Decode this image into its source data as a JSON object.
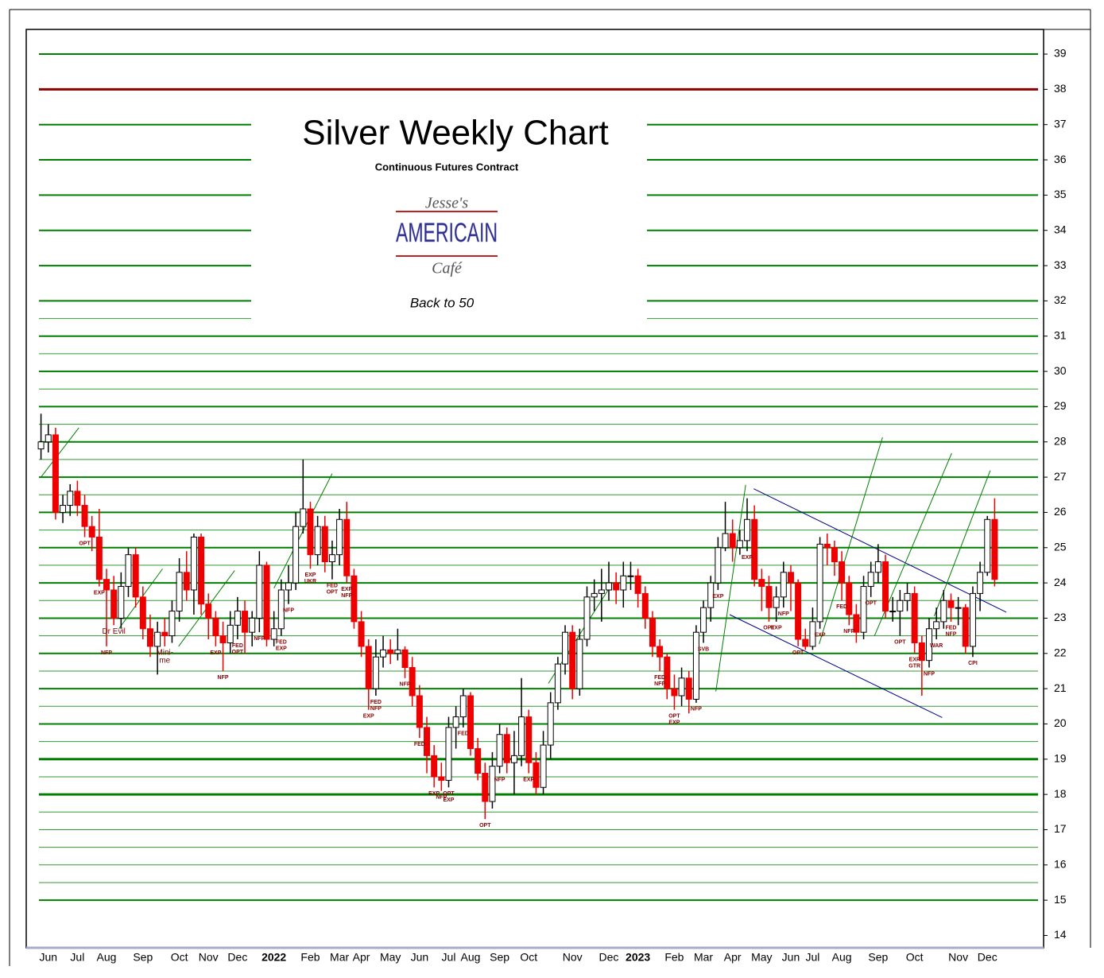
{
  "chart_data": {
    "type": "candlestick",
    "title": "Silver Weekly Chart",
    "subtitle": "Continuous Futures Contract",
    "logo": {
      "line1": "Jesse's",
      "line2": "AMERICAIN",
      "line3": "Café"
    },
    "caption": "Back to 50",
    "up_color": "#ffffff",
    "down_color": "#ee0000",
    "ylim": [
      13.65,
      39.7
    ],
    "yticks": [
      14,
      15,
      16,
      17,
      18,
      19,
      20,
      21,
      22,
      23,
      24,
      25,
      26,
      27,
      28,
      29,
      30,
      31,
      32,
      33,
      34,
      35,
      36,
      37,
      38,
      39
    ],
    "major_lines": [
      39,
      37,
      36,
      35,
      34,
      33,
      32,
      31,
      30,
      29,
      28,
      27,
      26,
      25,
      24,
      23,
      22,
      21,
      20,
      15
    ],
    "heavy_lines": [
      19,
      18
    ],
    "minor_lines": [
      31.5,
      30.5,
      29.5,
      28.5,
      27.5,
      26.5,
      25.5,
      24.5,
      23.5,
      22.5,
      21.5,
      20.5,
      19.5,
      18.5,
      17.5,
      17,
      16.5,
      16,
      15.5
    ],
    "line_color": "#008000",
    "resistance": 38,
    "resistance_color": "#8b0000",
    "categories": [
      null,
      "Jun",
      null,
      null,
      null,
      "Jul",
      null,
      null,
      null,
      "Aug",
      null,
      null,
      null,
      null,
      "Sep",
      null,
      null,
      null,
      null,
      "Oct",
      null,
      null,
      null,
      "Nov",
      null,
      null,
      null,
      "Dec",
      null,
      null,
      null,
      null,
      "2022",
      null,
      null,
      null,
      null,
      "Feb",
      null,
      null,
      null,
      "Mar",
      null,
      null,
      "Apr",
      null,
      null,
      null,
      "May",
      null,
      null,
      null,
      "Jun",
      null,
      null,
      null,
      "Jul",
      null,
      null,
      "Aug",
      null,
      null,
      null,
      "Sep",
      null,
      null,
      null,
      "Oct",
      null,
      null,
      null,
      null,
      null,
      "Nov",
      null,
      null,
      null,
      null,
      "Dec",
      null,
      null,
      null,
      "2023",
      null,
      null,
      null,
      null,
      "Feb",
      null,
      null,
      null,
      "Mar",
      null,
      null,
      null,
      "Apr",
      null,
      null,
      null,
      "May",
      null,
      null,
      null,
      "Jun",
      null,
      null,
      "Jul",
      null,
      null,
      null,
      "Aug",
      null,
      null,
      null,
      null,
      "Sep",
      null,
      null,
      null,
      null,
      "Oct",
      null,
      null,
      null,
      null,
      null,
      "Nov",
      null,
      null,
      null,
      "Dec",
      null
    ],
    "ohlc": [
      [
        27.8,
        28.8,
        27.5,
        28.0
      ],
      [
        28.0,
        28.5,
        27.7,
        28.2
      ],
      [
        28.2,
        28.4,
        25.8,
        26.0
      ],
      [
        26.0,
        26.5,
        25.7,
        26.2
      ],
      [
        26.2,
        26.8,
        25.9,
        26.6
      ],
      [
        26.6,
        26.9,
        25.9,
        26.2
      ],
      [
        26.2,
        26.5,
        25.3,
        25.6
      ],
      [
        25.6,
        25.9,
        24.9,
        25.3
      ],
      [
        25.3,
        26.1,
        23.9,
        24.1
      ],
      [
        24.1,
        24.4,
        22.2,
        23.8
      ],
      [
        23.8,
        24.2,
        22.8,
        23.0
      ],
      [
        23.0,
        24.3,
        22.7,
        23.9
      ],
      [
        23.9,
        25.0,
        23.6,
        24.8
      ],
      [
        24.8,
        25.0,
        23.3,
        23.6
      ],
      [
        23.6,
        23.9,
        22.4,
        22.7
      ],
      [
        22.7,
        23.1,
        21.9,
        22.2
      ],
      [
        22.2,
        22.9,
        21.4,
        22.6
      ],
      [
        22.6,
        23.0,
        22.2,
        22.5
      ],
      [
        22.5,
        23.5,
        22.3,
        23.2
      ],
      [
        23.2,
        24.7,
        22.9,
        24.3
      ],
      [
        24.3,
        24.9,
        23.5,
        23.8
      ],
      [
        23.8,
        25.4,
        23.1,
        25.3
      ],
      [
        25.3,
        25.4,
        23.1,
        23.4
      ],
      [
        23.4,
        23.7,
        22.4,
        23.0
      ],
      [
        23.0,
        23.2,
        22.2,
        22.5
      ],
      [
        22.5,
        22.9,
        21.5,
        22.3
      ],
      [
        22.3,
        23.2,
        22.0,
        22.8
      ],
      [
        22.8,
        23.6,
        22.4,
        23.2
      ],
      [
        23.2,
        23.5,
        22.0,
        22.6
      ],
      [
        22.6,
        23.2,
        22.2,
        23.0
      ],
      [
        23.0,
        24.9,
        22.6,
        24.5
      ],
      [
        24.5,
        24.6,
        22.2,
        22.4
      ],
      [
        22.4,
        23.2,
        22.2,
        22.7
      ],
      [
        22.7,
        24.1,
        22.5,
        23.8
      ],
      [
        23.8,
        24.5,
        23.4,
        24.0
      ],
      [
        24.0,
        26.0,
        23.8,
        25.6
      ],
      [
        25.6,
        27.5,
        25.4,
        26.1
      ],
      [
        26.1,
        26.3,
        24.4,
        24.8
      ],
      [
        24.8,
        25.9,
        24.5,
        25.6
      ],
      [
        25.6,
        25.9,
        24.3,
        24.6
      ],
      [
        24.6,
        25.2,
        24.1,
        24.8
      ],
      [
        24.8,
        26.1,
        24.5,
        25.8
      ],
      [
        25.8,
        26.3,
        24.0,
        24.2
      ],
      [
        24.2,
        24.4,
        22.7,
        22.9
      ],
      [
        22.9,
        23.2,
        21.9,
        22.2
      ],
      [
        22.2,
        22.4,
        20.4,
        21.0
      ],
      [
        21.0,
        22.4,
        20.8,
        21.9
      ],
      [
        21.9,
        22.5,
        21.6,
        22.1
      ],
      [
        22.1,
        22.4,
        21.7,
        22.0
      ],
      [
        22.0,
        22.7,
        21.8,
        22.1
      ],
      [
        22.1,
        22.2,
        21.3,
        21.6
      ],
      [
        21.6,
        21.9,
        20.5,
        20.8
      ],
      [
        20.8,
        21.1,
        19.6,
        19.9
      ],
      [
        19.9,
        20.2,
        18.6,
        19.1
      ],
      [
        19.1,
        19.4,
        18.2,
        18.5
      ],
      [
        18.5,
        18.9,
        18.1,
        18.4
      ],
      [
        18.4,
        20.2,
        18.2,
        19.9
      ],
      [
        19.9,
        20.5,
        19.3,
        20.2
      ],
      [
        20.2,
        21.0,
        19.9,
        20.8
      ],
      [
        20.8,
        20.9,
        19.1,
        19.3
      ],
      [
        19.3,
        19.6,
        18.4,
        18.6
      ],
      [
        18.6,
        18.9,
        17.3,
        17.8
      ],
      [
        17.8,
        19.2,
        17.6,
        18.8
      ],
      [
        18.8,
        20.0,
        18.6,
        19.7
      ],
      [
        19.7,
        19.9,
        18.6,
        18.9
      ],
      [
        18.9,
        19.8,
        18.0,
        19.1
      ],
      [
        19.1,
        21.3,
        18.8,
        20.2
      ],
      [
        20.2,
        20.4,
        18.6,
        18.9
      ],
      [
        18.9,
        19.2,
        18.0,
        18.2
      ],
      [
        18.2,
        19.8,
        18.0,
        19.4
      ],
      [
        19.4,
        20.9,
        19.0,
        20.6
      ],
      [
        20.6,
        21.9,
        20.4,
        21.7
      ],
      [
        21.7,
        22.8,
        21.4,
        22.6
      ],
      [
        22.6,
        22.8,
        20.7,
        21.0
      ],
      [
        21.0,
        22.7,
        20.8,
        22.4
      ],
      [
        22.4,
        23.9,
        22.2,
        23.6
      ],
      [
        23.6,
        24.1,
        23.2,
        23.7
      ],
      [
        23.7,
        24.4,
        22.9,
        23.8
      ],
      [
        23.8,
        24.6,
        23.5,
        24.0
      ],
      [
        24.0,
        24.3,
        23.4,
        23.8
      ],
      [
        23.8,
        24.6,
        23.3,
        24.2
      ],
      [
        24.2,
        24.6,
        23.8,
        24.2
      ],
      [
        24.2,
        24.4,
        23.3,
        23.7
      ],
      [
        23.7,
        23.9,
        22.7,
        23.0
      ],
      [
        23.0,
        23.2,
        21.9,
        22.2
      ],
      [
        22.2,
        22.4,
        21.5,
        21.9
      ],
      [
        21.9,
        22.0,
        20.7,
        21.0
      ],
      [
        21.0,
        21.4,
        20.4,
        20.8
      ],
      [
        20.8,
        21.6,
        20.5,
        21.3
      ],
      [
        21.3,
        21.5,
        20.3,
        20.7
      ],
      [
        20.7,
        22.8,
        20.6,
        22.6
      ],
      [
        22.6,
        23.5,
        22.3,
        23.3
      ],
      [
        23.3,
        24.2,
        22.9,
        24.0
      ],
      [
        24.0,
        25.3,
        23.8,
        25.0
      ],
      [
        25.0,
        26.3,
        24.9,
        25.4
      ],
      [
        25.4,
        25.8,
        24.6,
        25.0
      ],
      [
        25.0,
        25.5,
        24.8,
        25.2
      ],
      [
        25.2,
        26.4,
        24.9,
        25.8
      ],
      [
        25.8,
        26.2,
        23.9,
        24.1
      ],
      [
        24.1,
        24.4,
        23.2,
        23.9
      ],
      [
        23.9,
        24.2,
        22.9,
        23.3
      ],
      [
        23.3,
        23.9,
        22.9,
        23.6
      ],
      [
        23.6,
        24.6,
        23.3,
        24.3
      ],
      [
        24.3,
        24.5,
        23.2,
        24.0
      ],
      [
        24.0,
        24.1,
        22.2,
        22.4
      ],
      [
        22.4,
        22.7,
        22.1,
        22.2
      ],
      [
        22.2,
        23.3,
        22.1,
        22.9
      ],
      [
        22.9,
        25.3,
        22.7,
        25.1
      ],
      [
        25.1,
        25.4,
        24.5,
        25.0
      ],
      [
        25.0,
        25.2,
        24.2,
        24.6
      ],
      [
        24.6,
        24.9,
        23.5,
        24.0
      ],
      [
        24.0,
        24.2,
        22.8,
        23.1
      ],
      [
        23.1,
        23.4,
        22.3,
        22.6
      ],
      [
        22.6,
        24.2,
        22.4,
        23.9
      ],
      [
        23.9,
        24.6,
        23.6,
        24.3
      ],
      [
        24.3,
        25.1,
        24.0,
        24.6
      ],
      [
        24.6,
        24.8,
        23.0,
        23.2
      ],
      [
        23.2,
        23.6,
        22.9,
        23.2
      ],
      [
        23.2,
        23.8,
        22.5,
        23.5
      ],
      [
        23.5,
        24.0,
        23.2,
        23.7
      ],
      [
        23.7,
        23.9,
        22.0,
        22.3
      ],
      [
        22.3,
        22.5,
        20.8,
        21.8
      ],
      [
        21.8,
        23.0,
        21.6,
        22.7
      ],
      [
        22.7,
        23.3,
        22.4,
        22.9
      ],
      [
        22.9,
        23.8,
        22.7,
        23.5
      ],
      [
        23.5,
        23.7,
        22.9,
        23.3
      ],
      [
        23.3,
        23.6,
        22.8,
        23.3
      ],
      [
        23.3,
        23.4,
        22.0,
        22.2
      ],
      [
        22.2,
        23.9,
        21.9,
        23.7
      ],
      [
        23.7,
        24.6,
        23.2,
        24.3
      ],
      [
        24.3,
        25.9,
        24.2,
        25.8
      ],
      [
        25.8,
        26.4,
        23.9,
        24.1
      ]
    ],
    "annotations": [
      {
        "candle": 6,
        "text": [
          "OPT"
        ]
      },
      {
        "candle": 8,
        "text": [
          "EXP"
        ]
      },
      {
        "candle": 9,
        "text": [
          "NFP"
        ]
      },
      {
        "candle": 10,
        "text": [
          "Dr Evil"
        ]
      },
      {
        "candle": 17,
        "text": [
          "Mini-",
          "me"
        ]
      },
      {
        "candle": 24,
        "text": [
          "EXP"
        ]
      },
      {
        "candle": 25,
        "text": [
          "NFP"
        ]
      },
      {
        "candle": 27,
        "text": [
          "FED",
          "OPT"
        ]
      },
      {
        "candle": 30,
        "text": [
          "NFP"
        ]
      },
      {
        "candle": 33,
        "text": [
          "FED",
          "EXP"
        ]
      },
      {
        "candle": 34,
        "text": [
          "NFP"
        ]
      },
      {
        "candle": 37,
        "text": [
          "EXP",
          "UKR"
        ]
      },
      {
        "candle": 40,
        "text": [
          "FED",
          "OPT"
        ]
      },
      {
        "candle": 42,
        "text": [
          "EXP",
          "NFP"
        ]
      },
      {
        "candle": 45,
        "text": [
          "EXP"
        ]
      },
      {
        "candle": 46,
        "text": [
          "FED",
          "NFP"
        ]
      },
      {
        "candle": 50,
        "text": [
          "NFP"
        ]
      },
      {
        "candle": 52,
        "text": [
          "FED"
        ]
      },
      {
        "candle": 54,
        "text": [
          "EXP"
        ]
      },
      {
        "candle": 55,
        "text": [
          "NFP"
        ]
      },
      {
        "candle": 56,
        "text": [
          "OPT",
          "EXP"
        ]
      },
      {
        "candle": 58,
        "text": [
          "FED"
        ]
      },
      {
        "candle": 61,
        "text": [
          "OPT"
        ]
      },
      {
        "candle": 63,
        "text": [
          "NFP"
        ]
      },
      {
        "candle": 67,
        "text": [
          "EXP"
        ]
      },
      {
        "candle": 85,
        "text": [
          "FED",
          "NFP"
        ]
      },
      {
        "candle": 87,
        "text": [
          "OPT",
          "EXP"
        ]
      },
      {
        "candle": 90,
        "text": [
          "NFP"
        ]
      },
      {
        "candle": 91,
        "text": [
          "SVB"
        ]
      },
      {
        "candle": 93,
        "text": [
          "EXP"
        ]
      },
      {
        "candle": 97,
        "text": [
          "EXP"
        ]
      },
      {
        "candle": 100,
        "text": [
          "OPT"
        ]
      },
      {
        "candle": 101,
        "text": [
          "EXP"
        ]
      },
      {
        "candle": 102,
        "text": [
          "NFP"
        ]
      },
      {
        "candle": 104,
        "text": [
          "OPT"
        ]
      },
      {
        "candle": 107,
        "text": [
          "EXP"
        ]
      },
      {
        "candle": 110,
        "text": [
          "FED"
        ]
      },
      {
        "candle": 111,
        "text": [
          "NFP"
        ]
      },
      {
        "candle": 114,
        "text": [
          "OPT"
        ]
      },
      {
        "candle": 118,
        "text": [
          "OPT"
        ]
      },
      {
        "candle": 120,
        "text": [
          "EXP",
          "GTR"
        ]
      },
      {
        "candle": 122,
        "text": [
          "NFP"
        ]
      },
      {
        "candle": 123,
        "text": [
          "WAR"
        ]
      },
      {
        "candle": 125,
        "text": [
          "FED",
          "NFP"
        ]
      },
      {
        "candle": 128,
        "text": [
          "CPI"
        ]
      }
    ],
    "trendlines": [
      {
        "color": "#00008b",
        "points": [
          [
            97.9,
            26.67
          ],
          [
            132.6,
            23.17
          ]
        ]
      },
      {
        "color": "#00008b",
        "points": [
          [
            94.6,
            23.1
          ],
          [
            123.8,
            20.18
          ]
        ]
      },
      {
        "color": "#008000",
        "points": [
          [
            0,
            27.0
          ],
          [
            5.2,
            28.4
          ]
        ]
      },
      {
        "color": "#008000",
        "points": [
          [
            10.7,
            22.7
          ],
          [
            16.7,
            24.4
          ]
        ]
      },
      {
        "color": "#008000",
        "points": [
          [
            18.9,
            22.2
          ],
          [
            26.6,
            24.35
          ]
        ]
      },
      {
        "color": "#008000",
        "points": [
          [
            32,
            23.85
          ],
          [
            40,
            27.1
          ]
        ]
      },
      {
        "color": "#008000",
        "points": [
          [
            69.7,
            21.15
          ],
          [
            78.4,
            23.96
          ]
        ]
      },
      {
        "color": "#008000",
        "points": [
          [
            92.7,
            20.92
          ],
          [
            96.8,
            26.78
          ]
        ]
      },
      {
        "color": "#008000",
        "points": [
          [
            106.9,
            22.27
          ],
          [
            115.6,
            28.13
          ]
        ]
      },
      {
        "color": "#008000",
        "points": [
          [
            114.5,
            22.5
          ],
          [
            125.1,
            27.68
          ]
        ]
      },
      {
        "color": "#008000",
        "points": [
          [
            122.7,
            23.06
          ],
          [
            130.4,
            27.19
          ]
        ]
      }
    ]
  }
}
